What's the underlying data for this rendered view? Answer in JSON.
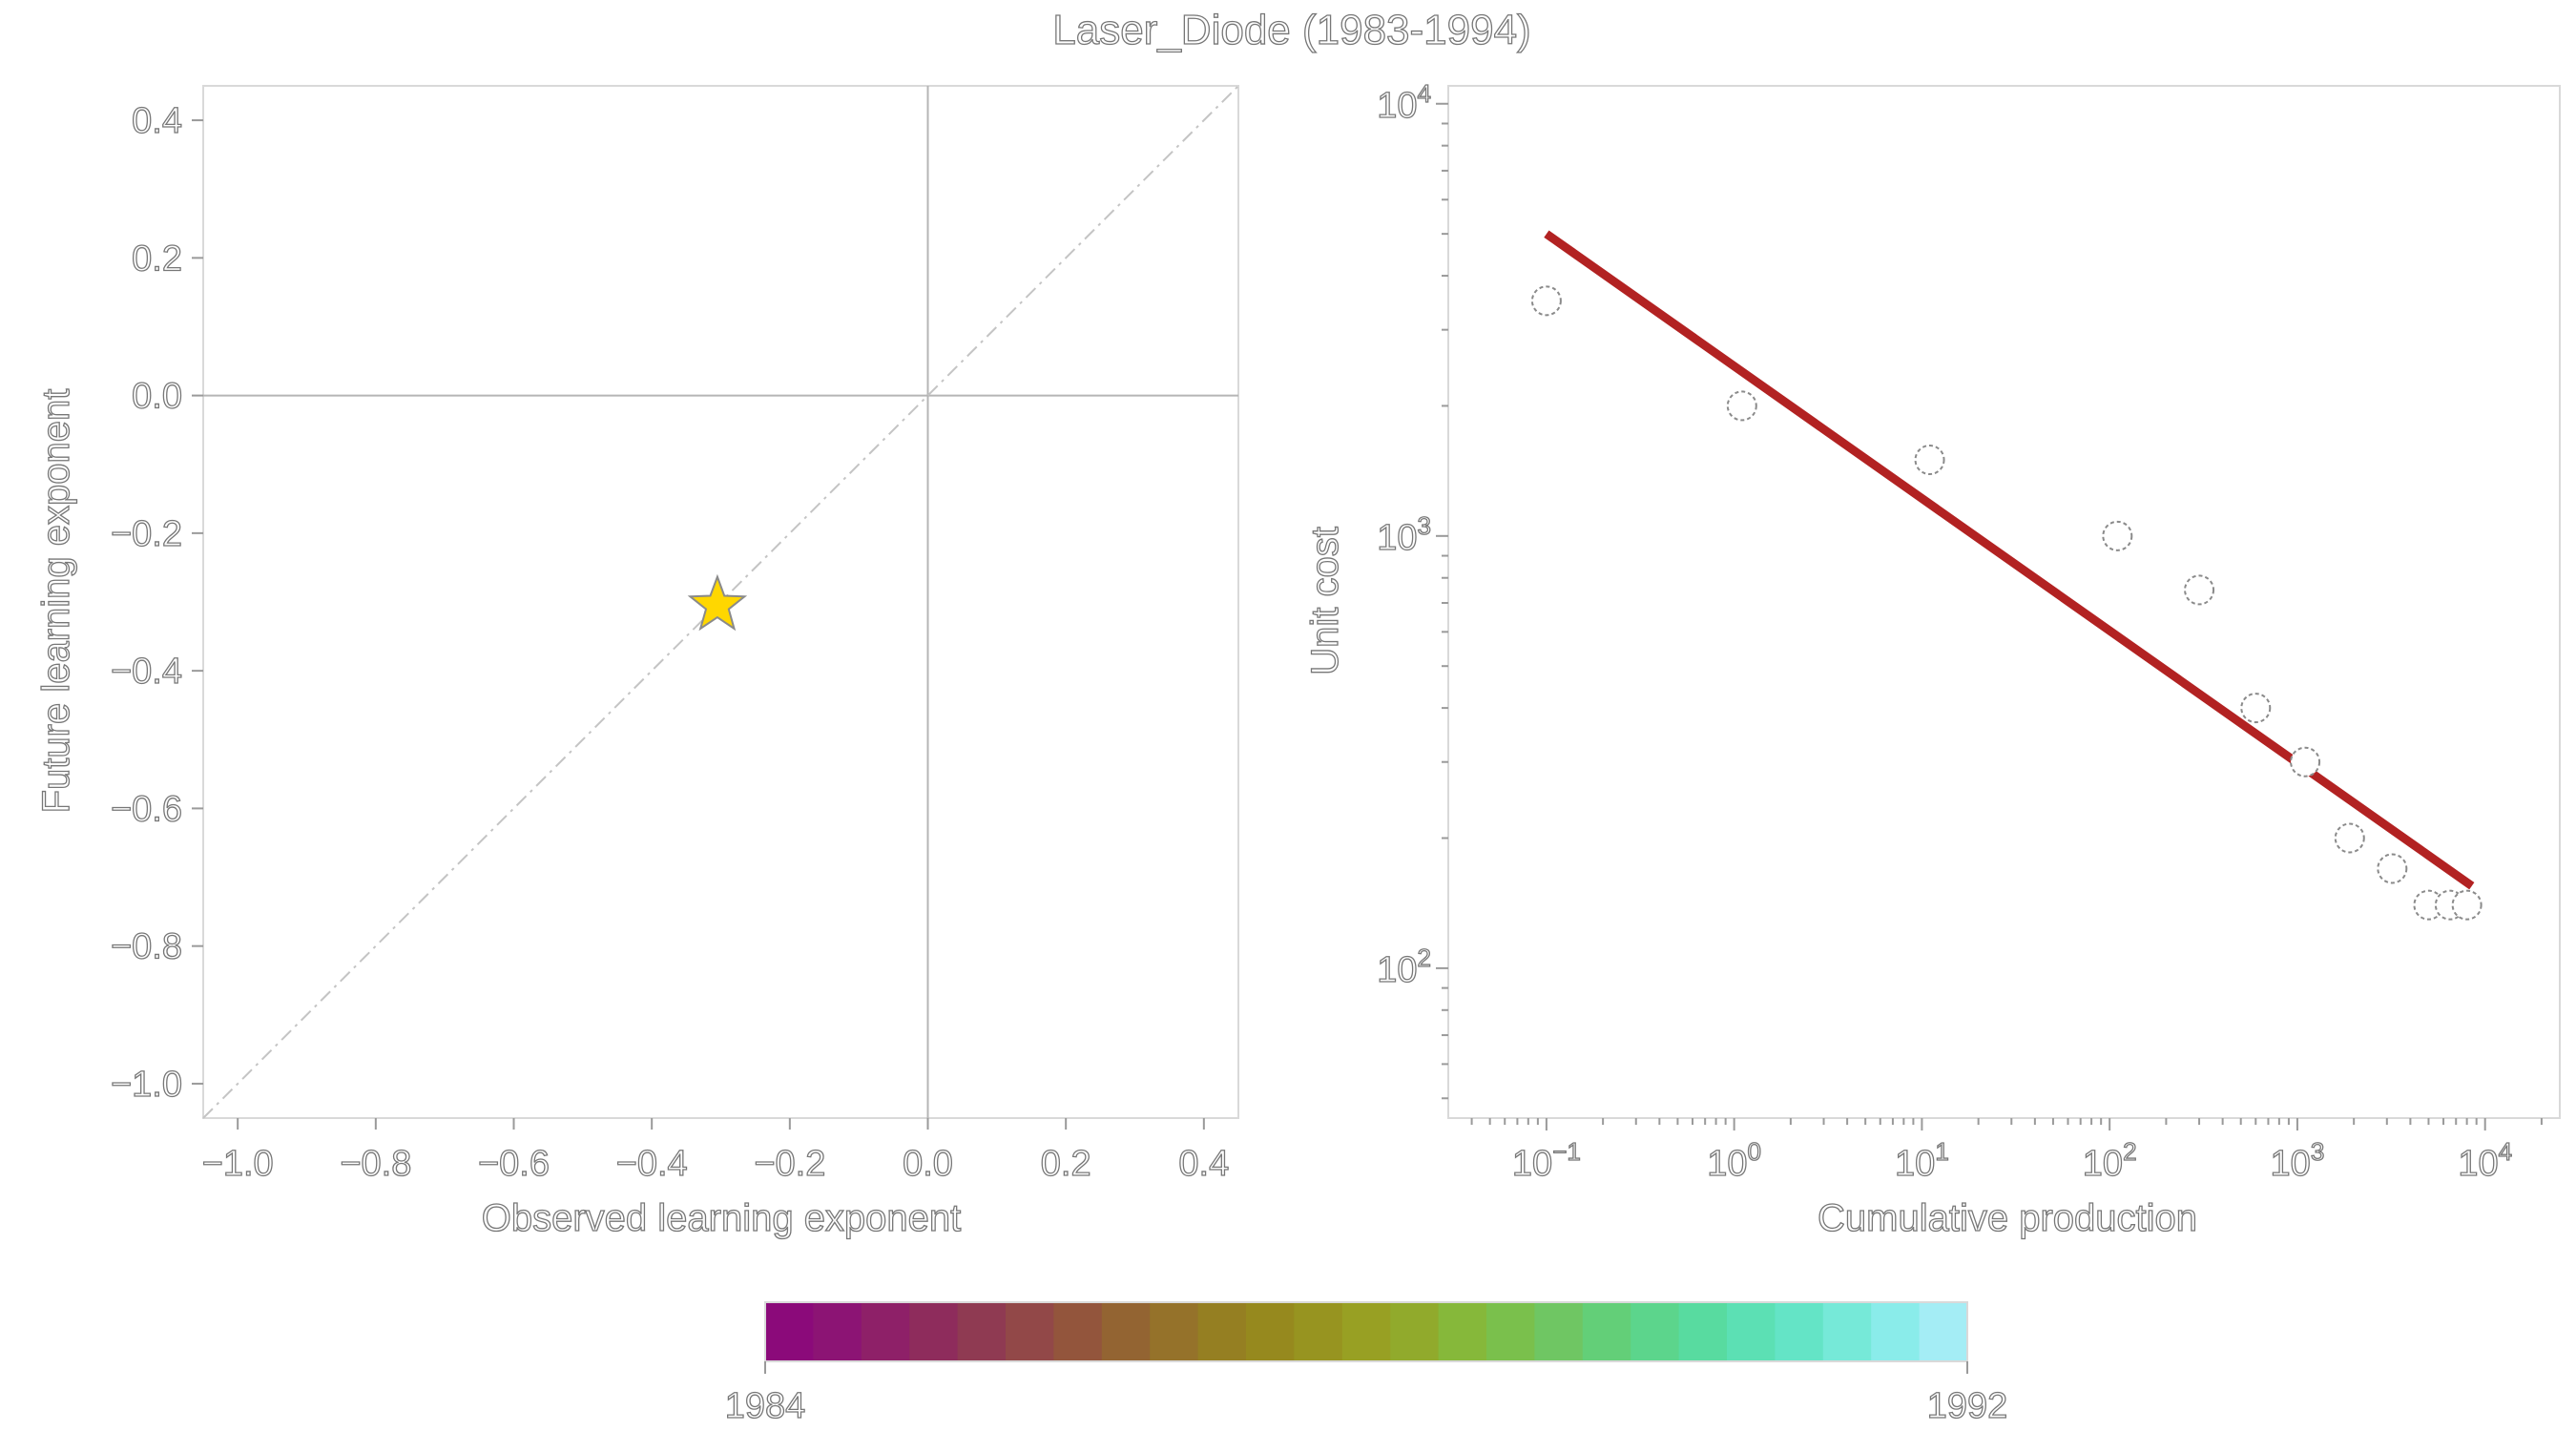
{
  "figure": {
    "title": "Laser_Diode (1983-1994)"
  },
  "chart_data": [
    {
      "type": "scatter",
      "xlabel": "Observed learning exponent",
      "ylabel": "Future learning exponent",
      "xlim": [
        -1.05,
        0.45
      ],
      "ylim": [
        -1.05,
        0.45
      ],
      "xticks": [
        -1.0,
        -0.8,
        -0.6,
        -0.4,
        -0.2,
        0.0,
        0.2,
        0.4
      ],
      "yticks": [
        -1.0,
        -0.8,
        -0.6,
        -0.4,
        -0.2,
        0.0,
        0.2,
        0.4
      ],
      "xtick_labels": [
        "−1.0",
        "−0.8",
        "−0.6",
        "−0.4",
        "−0.2",
        "0.0",
        "0.2",
        "0.4"
      ],
      "ytick_labels": [
        "−1.0",
        "−0.8",
        "−0.6",
        "−0.4",
        "−0.2",
        "0.0",
        "0.2",
        "0.4"
      ],
      "reference_lines": [
        "x = 0",
        "y = 0",
        "y = x (dash-dot)"
      ],
      "points": [
        {
          "x": -0.305,
          "y": -0.305,
          "marker": "star",
          "color": "#ffd700"
        }
      ]
    },
    {
      "type": "scatter",
      "xscale": "log",
      "yscale": "log",
      "xlabel": "Cumulative production",
      "ylabel": "Unit cost",
      "xlim": [
        0.03,
        25000
      ],
      "ylim": [
        45,
        11000
      ],
      "xticks": [
        {
          "base": "10",
          "exp": "−1",
          "value": 0.1
        },
        {
          "base": "10",
          "exp": "0",
          "value": 1
        },
        {
          "base": "10",
          "exp": "1",
          "value": 10
        },
        {
          "base": "10",
          "exp": "2",
          "value": 100
        },
        {
          "base": "10",
          "exp": "3",
          "value": 1000
        },
        {
          "base": "10",
          "exp": "4",
          "value": 10000
        }
      ],
      "yticks": [
        {
          "base": "10",
          "exp": "2",
          "value": 100
        },
        {
          "base": "10",
          "exp": "3",
          "value": 1000
        },
        {
          "base": "10",
          "exp": "4",
          "value": 10000
        }
      ],
      "points": [
        {
          "x": 0.1,
          "y": 3500
        },
        {
          "x": 1.1,
          "y": 2000
        },
        {
          "x": 11,
          "y": 1500
        },
        {
          "x": 110,
          "y": 1000
        },
        {
          "x": 300,
          "y": 750
        },
        {
          "x": 600,
          "y": 400
        },
        {
          "x": 1100,
          "y": 300
        },
        {
          "x": 1900,
          "y": 200
        },
        {
          "x": 3200,
          "y": 170
        },
        {
          "x": 5000,
          "y": 140
        },
        {
          "x": 6500,
          "y": 140
        },
        {
          "x": 8000,
          "y": 140
        }
      ],
      "fit_line": {
        "x": [
          0.1,
          8500
        ],
        "y": [
          5000,
          155
        ],
        "color": "#b22222"
      }
    }
  ],
  "colorbar": {
    "min_label": "1984",
    "max_label": "1992",
    "colors": [
      "#8b0a7a",
      "#8c1474",
      "#8e2068",
      "#8e2c5c",
      "#8f3a52",
      "#924848",
      "#93553c",
      "#936432",
      "#95722a",
      "#957f22",
      "#96891e",
      "#979420",
      "#98a023",
      "#91aa2c",
      "#86b83a",
      "#7ac04c",
      "#6fc663",
      "#63cf78",
      "#5cd58c",
      "#58dba0",
      "#5ce0b4",
      "#64e4c6",
      "#76e9d8",
      "#8aecea",
      "#a4edf5"
    ]
  }
}
